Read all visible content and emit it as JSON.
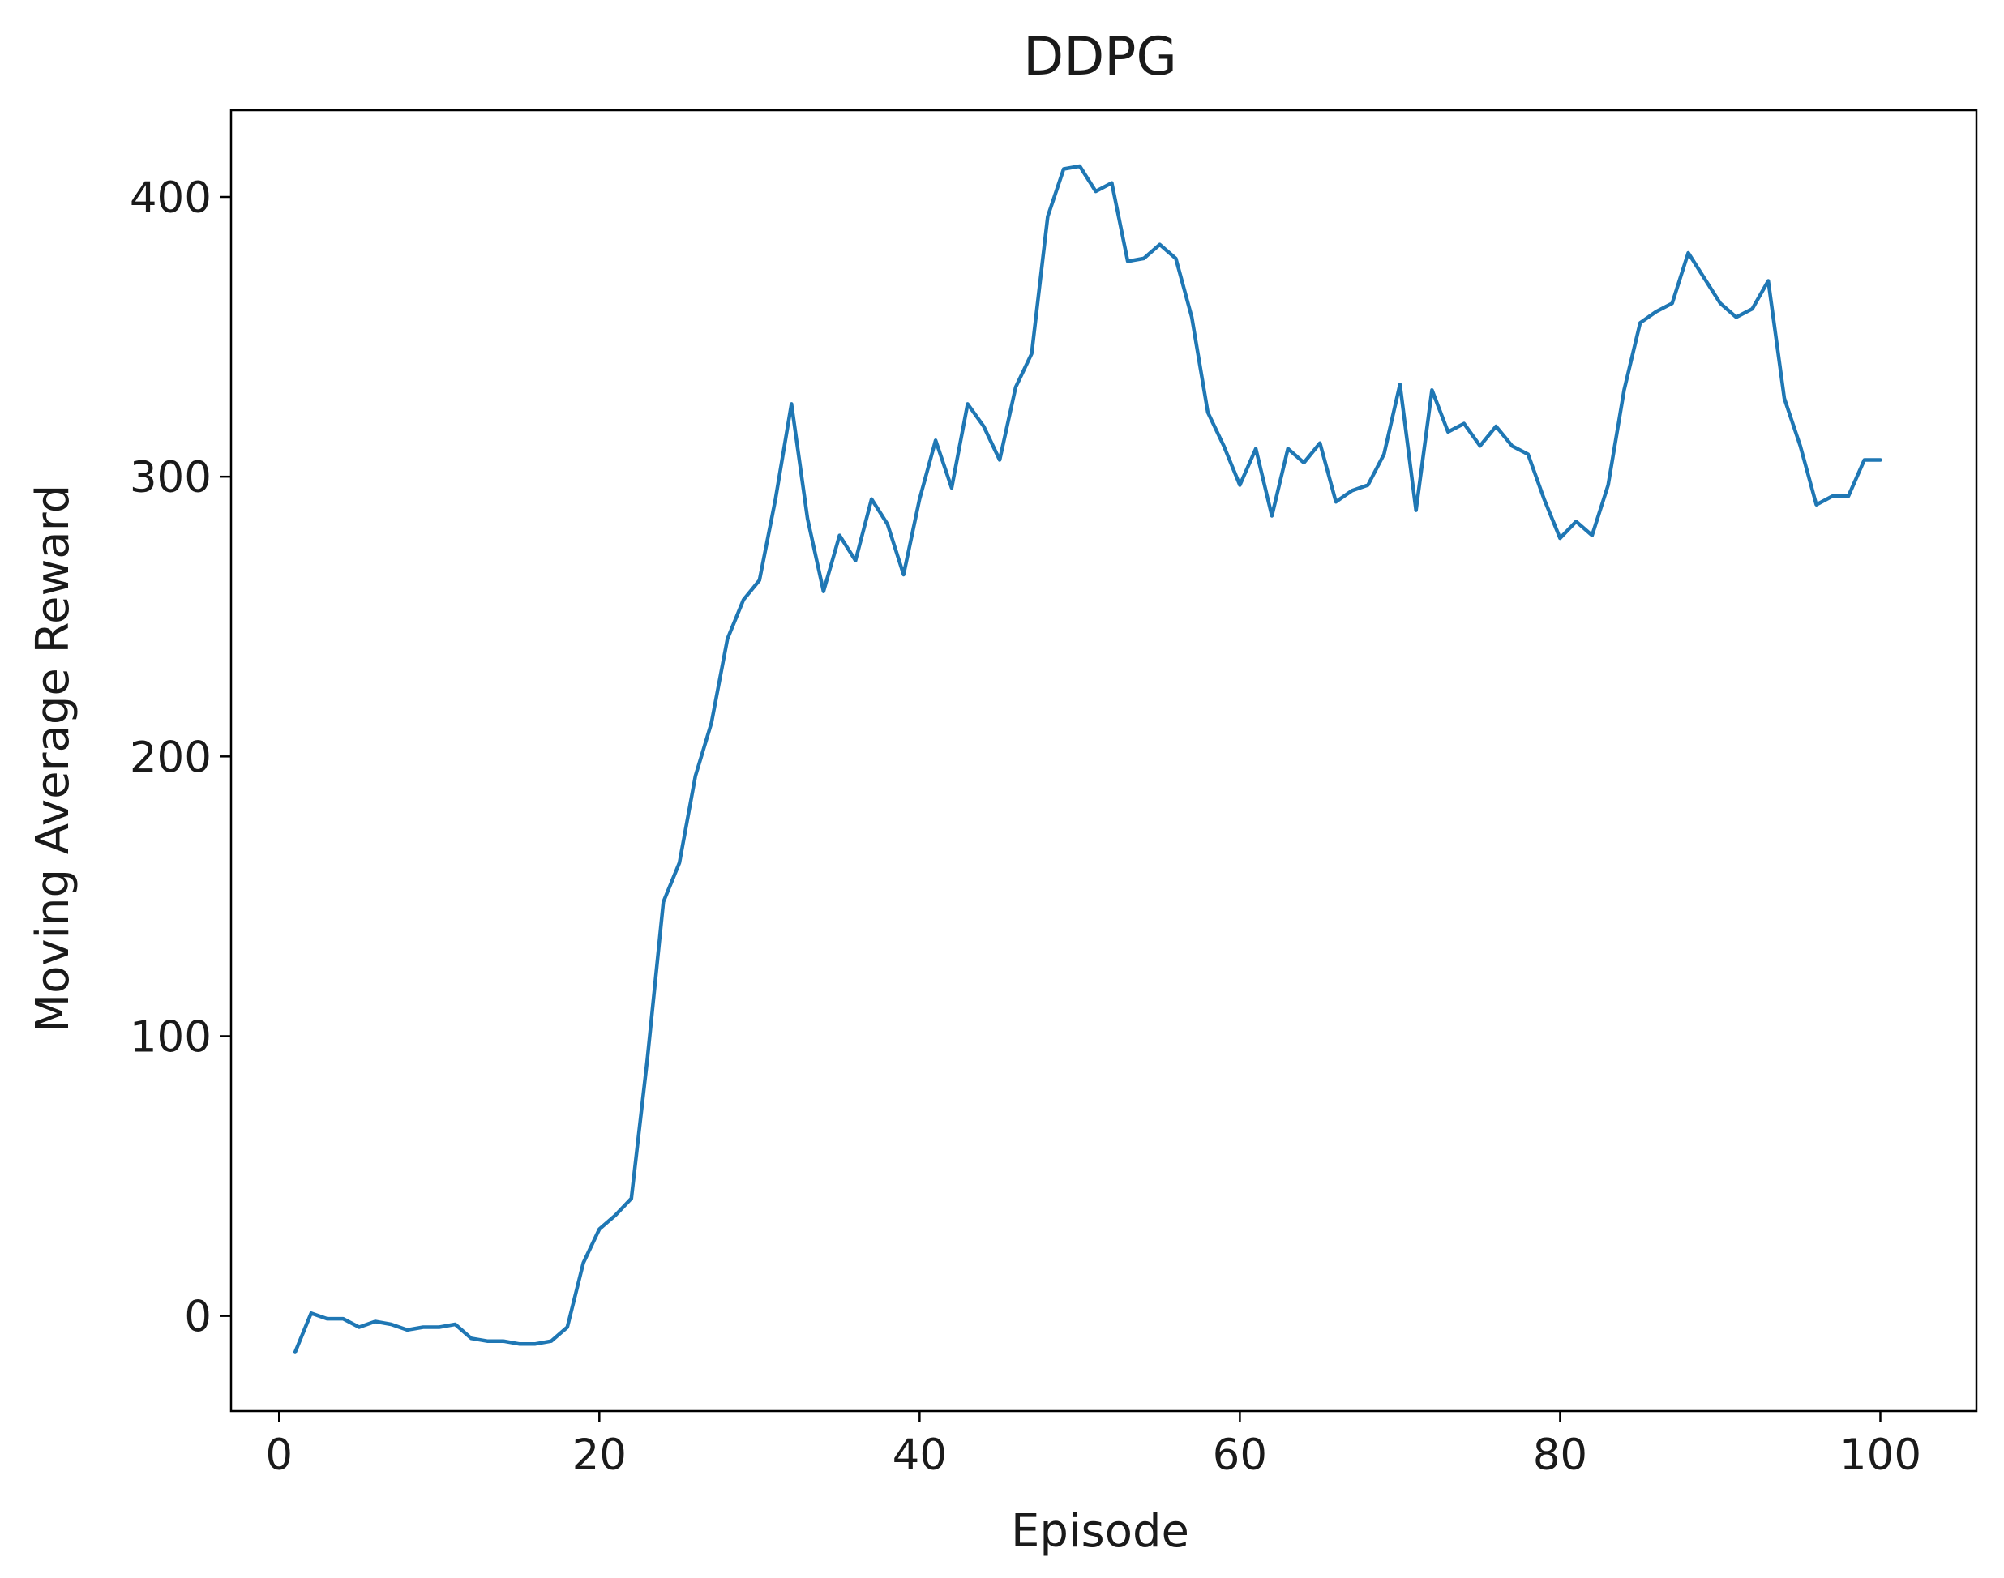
{
  "chart_data": {
    "type": "line",
    "title": "DDPG",
    "xlabel": "Episode",
    "ylabel": "Moving Average Reward",
    "xlim": [
      -3,
      106
    ],
    "ylim": [
      -34,
      431
    ],
    "xticks": [
      0,
      20,
      40,
      60,
      80,
      100
    ],
    "yticks": [
      0,
      100,
      200,
      300,
      400
    ],
    "xtick_labels": [
      "0",
      "20",
      "40",
      "60",
      "80",
      "100"
    ],
    "ytick_labels": [
      "0",
      "100",
      "200",
      "300",
      "400"
    ],
    "grid": false,
    "legend": false,
    "colors": {
      "line": "#1f77b4",
      "axes": "#000000"
    },
    "series": [
      {
        "x": [
          1,
          2,
          3,
          4,
          5,
          6,
          7,
          8,
          9,
          10,
          11,
          12,
          13,
          14,
          15,
          16,
          17,
          18,
          19,
          20,
          21,
          22,
          23,
          24,
          25,
          26,
          27,
          28,
          29,
          30,
          31,
          32,
          33,
          34,
          35,
          36,
          37,
          38,
          39,
          40,
          41,
          42,
          43,
          44,
          45,
          46,
          47,
          48,
          49,
          50,
          51,
          52,
          53,
          54,
          55,
          56,
          57,
          58,
          59,
          60,
          61,
          62,
          63,
          64,
          65,
          66,
          67,
          68,
          69,
          70,
          71,
          72,
          73,
          74,
          75,
          76,
          77,
          78,
          79,
          80,
          81,
          82,
          83,
          84,
          85,
          86,
          87,
          88,
          89,
          90,
          91,
          92,
          93,
          94,
          95,
          96,
          97,
          98,
          99,
          100
        ],
        "values": [
          -13,
          1,
          -1,
          -1,
          -4,
          -2,
          -3,
          -5,
          -4,
          -4,
          -3,
          -8,
          -9,
          -9,
          -10,
          -10,
          -9,
          -4,
          19,
          31,
          36,
          42,
          92,
          148,
          162,
          193,
          212,
          242,
          256,
          263,
          292,
          326,
          285,
          259,
          279,
          270,
          292,
          283,
          265,
          292,
          313,
          296,
          326,
          318,
          306,
          332,
          344,
          393,
          410,
          411,
          402,
          405,
          377,
          378,
          383,
          378,
          357,
          323,
          311,
          297,
          310,
          286,
          310,
          305,
          312,
          291,
          295,
          297,
          308,
          333,
          288,
          331,
          316,
          319,
          311,
          318,
          311,
          308,
          292,
          278,
          284,
          279,
          297,
          331,
          355,
          359,
          362,
          380,
          371,
          362,
          357,
          360,
          370,
          328,
          311,
          290,
          293,
          293,
          306,
          306
        ]
      }
    ]
  }
}
